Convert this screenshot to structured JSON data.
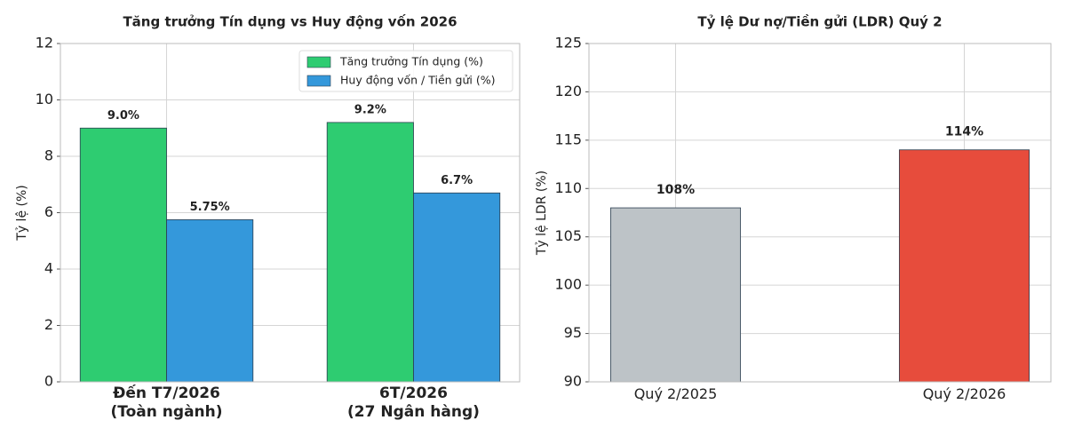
{
  "chart_data": [
    {
      "type": "grouped-bar",
      "title": "Tăng trưởng Tín dụng vs Huy động vốn 2026",
      "ylabel": "Tỷ lệ (%)",
      "categories": [
        "Đến T7/2026\n(Toàn ngành)",
        "6T/2026\n(27 Ngân hàng)"
      ],
      "series": [
        {
          "name": "Tăng trưởng Tín dụng (%)",
          "color": "#2ecc71",
          "values": [
            9.0,
            9.2
          ],
          "value_labels": [
            "9.0%",
            "9.2%"
          ]
        },
        {
          "name": "Huy động vốn / Tiền gửi (%)",
          "color": "#3498db",
          "values": [
            5.75,
            6.7
          ],
          "value_labels": [
            "5.75%",
            "6.7%"
          ]
        }
      ],
      "ylim": [
        0,
        12
      ],
      "yticks": [
        0,
        2,
        4,
        6,
        8,
        10,
        12
      ],
      "grid": true,
      "legend": "upper right"
    },
    {
      "type": "bar",
      "title": "Tỷ lệ Dư nợ/Tiền gửi (LDR) Quý 2",
      "ylabel": "Tỷ lệ LDR (%)",
      "categories": [
        "Quý 2/2025",
        "Quý 2/2026"
      ],
      "values": [
        108,
        114
      ],
      "value_labels": [
        "108%",
        "114%"
      ],
      "colors": [
        "#bdc3c7",
        "#e74c3c"
      ],
      "ylim": [
        90,
        125
      ],
      "yticks": [
        90,
        95,
        100,
        105,
        110,
        115,
        120,
        125
      ],
      "grid": true
    }
  ]
}
